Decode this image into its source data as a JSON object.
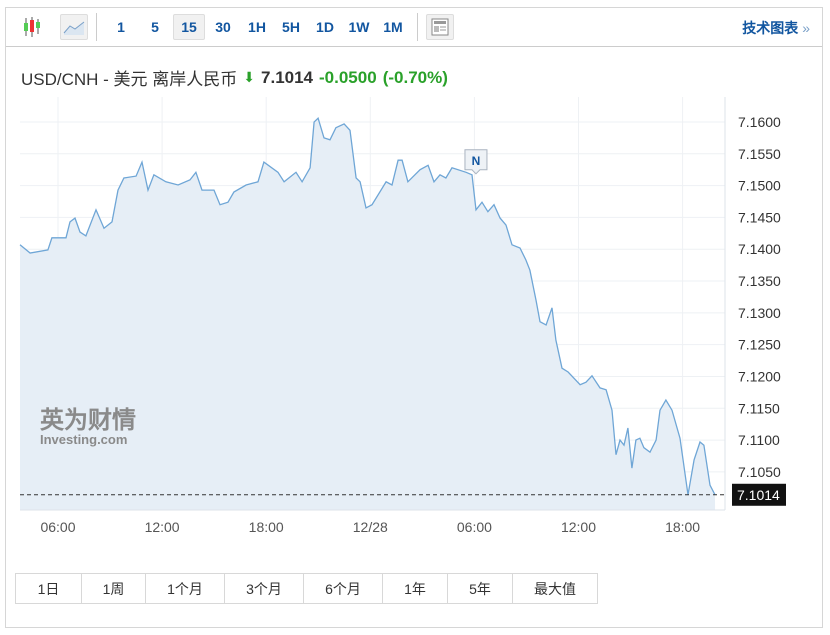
{
  "toolbar": {
    "intervals": [
      "1",
      "5",
      "15",
      "30",
      "1H",
      "5H",
      "1D",
      "1W",
      "1M"
    ],
    "selected": "15",
    "tech_chart": "技术图表",
    "tech_arrow": "»"
  },
  "header": {
    "pair": "USD/CNH - 美元 离岸人民币",
    "price": "7.1014",
    "change": "-0.0500",
    "change_pct": "(-0.70%)"
  },
  "colors": {
    "line": "#6fa6d6",
    "fill": "#e6eef6",
    "up": "#2aa12a",
    "link": "#1256a0"
  },
  "watermark": {
    "cn": "英为财情",
    "en": "Investing.com"
  },
  "marker": "N",
  "chart_data": {
    "type": "area",
    "title": "USD/CNH - 美元 离岸人民币",
    "x_unit": "hours since 12/27 00:00",
    "x_ticks": [
      {
        "h": 6,
        "label": "06:00"
      },
      {
        "h": 12,
        "label": "12:00"
      },
      {
        "h": 18,
        "label": "18:00"
      },
      {
        "h": 24,
        "label": "12/28"
      },
      {
        "h": 30,
        "label": "06:00"
      },
      {
        "h": 36,
        "label": "12:00"
      },
      {
        "h": 42,
        "label": "18:00"
      }
    ],
    "y_ticks": [
      "7.1050",
      "7.1100",
      "7.1150",
      "7.1200",
      "7.1250",
      "7.1300",
      "7.1350",
      "7.1400",
      "7.1450",
      "7.1500",
      "7.1550",
      "7.1600"
    ],
    "current": 7.1014,
    "current_label": "7.1014",
    "ylim": [
      7.098,
      7.164
    ],
    "points": [
      [
        3.81,
        7.1407
      ],
      [
        4.39,
        7.1394
      ],
      [
        5.42,
        7.1399
      ],
      [
        5.65,
        7.1418
      ],
      [
        6.46,
        7.1418
      ],
      [
        6.69,
        7.1443
      ],
      [
        6.98,
        7.1449
      ],
      [
        7.27,
        7.1427
      ],
      [
        7.61,
        7.1421
      ],
      [
        8.19,
        7.1462
      ],
      [
        8.65,
        7.1433
      ],
      [
        9.11,
        7.1443
      ],
      [
        9.46,
        7.1493
      ],
      [
        9.8,
        7.1512
      ],
      [
        10.5,
        7.1515
      ],
      [
        10.84,
        7.1537
      ],
      [
        11.19,
        7.1493
      ],
      [
        11.53,
        7.1517
      ],
      [
        12.22,
        7.1506
      ],
      [
        12.92,
        7.1501
      ],
      [
        13.61,
        7.1509
      ],
      [
        13.95,
        7.1521
      ],
      [
        14.3,
        7.1493
      ],
      [
        14.99,
        7.1493
      ],
      [
        15.34,
        7.147
      ],
      [
        15.8,
        7.1474
      ],
      [
        16.14,
        7.149
      ],
      [
        16.84,
        7.1501
      ],
      [
        17.53,
        7.1506
      ],
      [
        17.87,
        7.1537
      ],
      [
        18.68,
        7.1521
      ],
      [
        19.03,
        7.1506
      ],
      [
        19.72,
        7.1521
      ],
      [
        20.07,
        7.1506
      ],
      [
        20.53,
        7.1528
      ],
      [
        20.76,
        7.16
      ],
      [
        20.99,
        7.1606
      ],
      [
        21.33,
        7.1575
      ],
      [
        21.68,
        7.1572
      ],
      [
        22.02,
        7.1591
      ],
      [
        22.49,
        7.1597
      ],
      [
        22.83,
        7.1587
      ],
      [
        23.18,
        7.1512
      ],
      [
        23.41,
        7.1506
      ],
      [
        23.75,
        7.1465
      ],
      [
        24.1,
        7.147
      ],
      [
        24.91,
        7.1506
      ],
      [
        25.25,
        7.1501
      ],
      [
        25.6,
        7.154
      ],
      [
        25.83,
        7.154
      ],
      [
        26.17,
        7.1506
      ],
      [
        26.87,
        7.1525
      ],
      [
        27.33,
        7.1532
      ],
      [
        27.67,
        7.1506
      ],
      [
        28.02,
        7.1517
      ],
      [
        28.36,
        7.1512
      ],
      [
        28.71,
        7.1528
      ],
      [
        29.52,
        7.1521
      ],
      [
        29.86,
        7.1517
      ],
      [
        30.09,
        7.1462
      ],
      [
        30.44,
        7.1474
      ],
      [
        30.78,
        7.1459
      ],
      [
        31.13,
        7.147
      ],
      [
        31.48,
        7.1449
      ],
      [
        31.82,
        7.1438
      ],
      [
        32.17,
        7.1407
      ],
      [
        32.63,
        7.1402
      ],
      [
        32.97,
        7.1383
      ],
      [
        33.2,
        7.1367
      ],
      [
        33.55,
        7.132
      ],
      [
        33.78,
        7.1286
      ],
      [
        34.13,
        7.1281
      ],
      [
        34.47,
        7.1308
      ],
      [
        34.7,
        7.1257
      ],
      [
        35.05,
        7.1213
      ],
      [
        35.4,
        7.1207
      ],
      [
        36.09,
        7.1187
      ],
      [
        36.43,
        7.1191
      ],
      [
        36.78,
        7.1201
      ],
      [
        37.24,
        7.1182
      ],
      [
        37.59,
        7.1179
      ],
      [
        37.93,
        7.1147
      ],
      [
        38.16,
        7.1077
      ],
      [
        38.39,
        7.11
      ],
      [
        38.62,
        7.1092
      ],
      [
        38.85,
        7.1119
      ],
      [
        39.08,
        7.1056
      ],
      [
        39.31,
        7.11
      ],
      [
        39.54,
        7.1103
      ],
      [
        39.77,
        7.1088
      ],
      [
        40.12,
        7.1081
      ],
      [
        40.47,
        7.11
      ],
      [
        40.7,
        7.1147
      ],
      [
        41.04,
        7.1163
      ],
      [
        41.39,
        7.1147
      ],
      [
        41.85,
        7.1103
      ],
      [
        42.31,
        7.1014
      ],
      [
        42.66,
        7.1069
      ],
      [
        43.0,
        7.1097
      ],
      [
        43.23,
        7.1092
      ],
      [
        43.58,
        7.1029
      ],
      [
        43.87,
        7.1014
      ]
    ],
    "marker_point": [
      30.09,
      7.1517
    ]
  },
  "ranges": [
    "1日",
    "1周",
    "1个月",
    "3个月",
    "6个月",
    "1年",
    "5年",
    "最大值"
  ]
}
